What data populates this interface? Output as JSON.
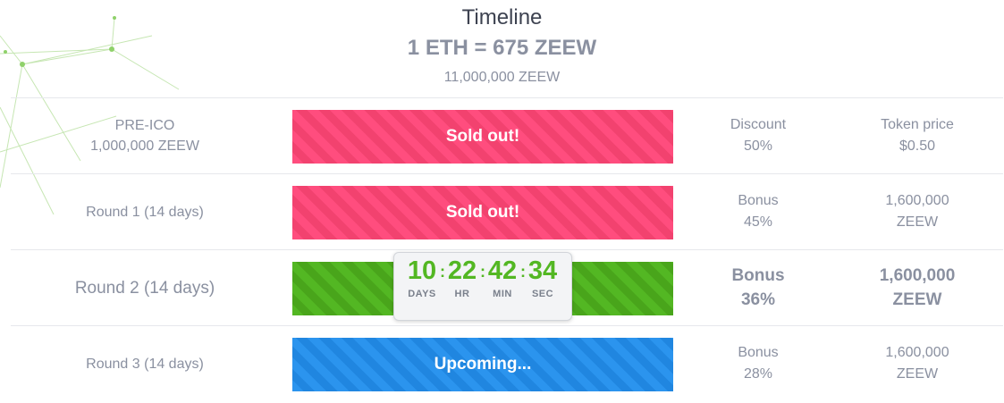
{
  "header": {
    "title": "Timeline",
    "rate": "1 ETH = 675 ZEEW",
    "supply": "11,000,000 ZEEW"
  },
  "rows": [
    {
      "label_lines": [
        "PRE-ICO",
        "1,000,000 ZEEW"
      ],
      "status": "Sold out!",
      "state": "sold",
      "col1": [
        "Discount",
        "50%"
      ],
      "col2": [
        "Token price",
        "$0.50"
      ]
    },
    {
      "label_lines": [
        "Round 1 (14 days)"
      ],
      "status": "Sold out!",
      "state": "sold",
      "col1": [
        "Bonus",
        "45%"
      ],
      "col2": [
        "1,600,000",
        "ZEEW"
      ]
    },
    {
      "label_lines": [
        "Round 2 (14 days)"
      ],
      "status": "",
      "state": "active",
      "col1": [
        "Bonus",
        "36%"
      ],
      "col2": [
        "1,600,000",
        "ZEEW"
      ]
    },
    {
      "label_lines": [
        "Round 3 (14 days)"
      ],
      "status": "Upcoming...",
      "state": "upcoming",
      "col1": [
        "Bonus",
        "28%"
      ],
      "col2": [
        "1,600,000",
        "ZEEW"
      ]
    }
  ],
  "countdown": {
    "days": "10",
    "hours": "22",
    "minutes": "42",
    "seconds": "34",
    "days_label": "DAYS",
    "hours_label": "HR",
    "minutes_label": "MIN",
    "seconds_label": "SEC",
    "separator": ":"
  },
  "colors": {
    "sold": "#ff4d7e",
    "active": "#53b723",
    "upcoming": "#2b94ee"
  }
}
